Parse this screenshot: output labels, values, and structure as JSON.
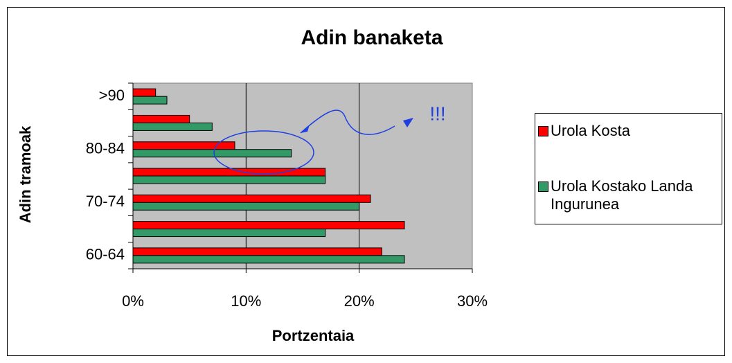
{
  "chart_data": {
    "type": "barh",
    "title": "Adin banaketa",
    "xlabel": "Portzentaia",
    "ylabel": "Adin tramoak",
    "categories": [
      "60-64",
      null,
      "70-74",
      null,
      "80-84",
      null,
      ">90"
    ],
    "series": [
      {
        "name": "Urola Kosta",
        "color": "#ff0000",
        "values": [
          22,
          24,
          21,
          17,
          9,
          5,
          2
        ]
      },
      {
        "name": "Urola Kostako Landa Ingurunea",
        "color": "#339966",
        "values": [
          24,
          17,
          20,
          17,
          14,
          7,
          3
        ]
      }
    ],
    "xlim": [
      0,
      30
    ],
    "xticks": [
      {
        "value": 0,
        "label": "0%"
      },
      {
        "value": 10,
        "label": "10%"
      },
      {
        "value": 20,
        "label": "20%"
      },
      {
        "value": 30,
        "label": "30%"
      }
    ],
    "grid": true,
    "legend": "right",
    "annotations": [
      "!!!"
    ]
  }
}
